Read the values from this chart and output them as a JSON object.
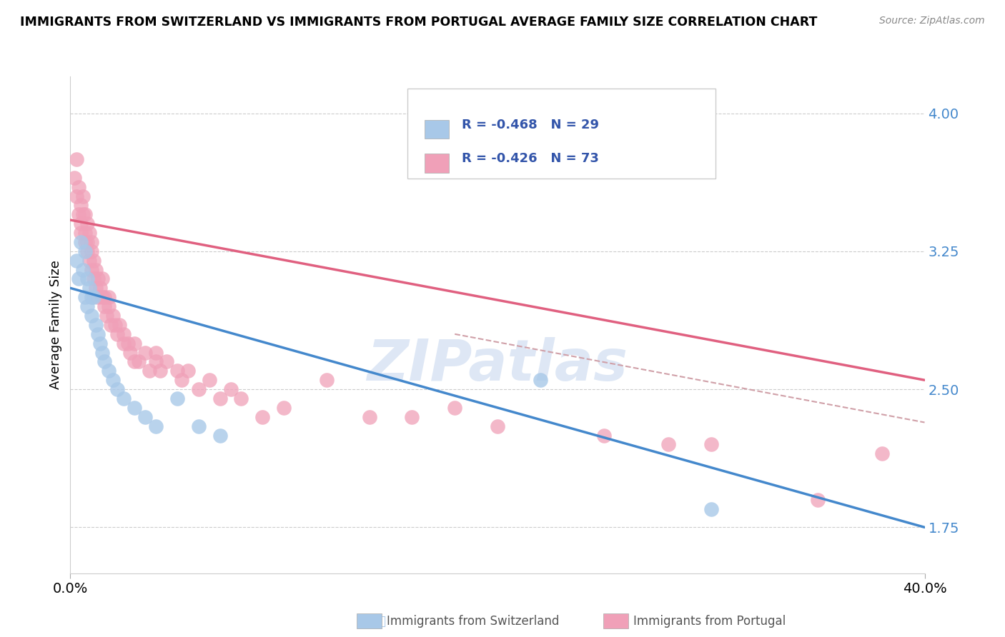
{
  "title": "IMMIGRANTS FROM SWITZERLAND VS IMMIGRANTS FROM PORTUGAL AVERAGE FAMILY SIZE CORRELATION CHART",
  "source": "Source: ZipAtlas.com",
  "ylabel": "Average Family Size",
  "ymin": 1.5,
  "ymax": 4.2,
  "xmin": 0.0,
  "xmax": 0.4,
  "yticks": [
    1.75,
    2.5,
    3.25,
    4.0
  ],
  "legend_r1": "R = -0.468",
  "legend_n1": "N = 29",
  "legend_r2": "R = -0.426",
  "legend_n2": "N = 73",
  "color_swiss": "#a8c8e8",
  "color_port": "#f0a0b8",
  "color_swiss_line": "#4488cc",
  "color_port_line": "#e06080",
  "color_dashed": "#d0a0a8",
  "color_legend_text": "#3355aa",
  "watermark": "ZIPatlas",
  "watermark_color": "#c8d8ef",
  "swiss_line_x0": 0.0,
  "swiss_line_y0": 3.05,
  "swiss_line_x1": 0.4,
  "swiss_line_y1": 1.75,
  "port_line_x0": 0.0,
  "port_line_y0": 3.42,
  "port_line_x1": 0.4,
  "port_line_y1": 2.55,
  "dash_line_x0": 0.18,
  "dash_line_y0": 2.8,
  "dash_line_x1": 0.4,
  "dash_line_y1": 2.32,
  "scatter_swiss_x": [
    0.003,
    0.004,
    0.005,
    0.006,
    0.007,
    0.007,
    0.008,
    0.008,
    0.009,
    0.01,
    0.01,
    0.011,
    0.012,
    0.013,
    0.014,
    0.015,
    0.016,
    0.018,
    0.02,
    0.022,
    0.025,
    0.03,
    0.035,
    0.04,
    0.05,
    0.06,
    0.07,
    0.22,
    0.3
  ],
  "scatter_swiss_y": [
    3.2,
    3.1,
    3.3,
    3.15,
    3.25,
    3.0,
    3.1,
    2.95,
    3.05,
    3.0,
    2.9,
    3.0,
    2.85,
    2.8,
    2.75,
    2.7,
    2.65,
    2.6,
    2.55,
    2.5,
    2.45,
    2.4,
    2.35,
    2.3,
    2.45,
    2.3,
    2.25,
    2.55,
    1.85
  ],
  "scatter_port_x": [
    0.002,
    0.003,
    0.003,
    0.004,
    0.004,
    0.005,
    0.005,
    0.005,
    0.006,
    0.006,
    0.007,
    0.007,
    0.007,
    0.008,
    0.008,
    0.008,
    0.009,
    0.009,
    0.01,
    0.01,
    0.01,
    0.011,
    0.011,
    0.012,
    0.012,
    0.013,
    0.013,
    0.014,
    0.015,
    0.015,
    0.016,
    0.016,
    0.017,
    0.018,
    0.018,
    0.019,
    0.02,
    0.021,
    0.022,
    0.023,
    0.025,
    0.025,
    0.027,
    0.028,
    0.03,
    0.03,
    0.032,
    0.035,
    0.037,
    0.04,
    0.04,
    0.042,
    0.045,
    0.05,
    0.052,
    0.055,
    0.06,
    0.065,
    0.07,
    0.075,
    0.08,
    0.09,
    0.1,
    0.12,
    0.14,
    0.16,
    0.18,
    0.2,
    0.25,
    0.28,
    0.3,
    0.35,
    0.38
  ],
  "scatter_port_y": [
    3.65,
    3.75,
    3.55,
    3.6,
    3.45,
    3.5,
    3.4,
    3.35,
    3.55,
    3.45,
    3.35,
    3.45,
    3.3,
    3.4,
    3.3,
    3.25,
    3.35,
    3.2,
    3.3,
    3.25,
    3.15,
    3.2,
    3.1,
    3.15,
    3.05,
    3.1,
    3.0,
    3.05,
    3.1,
    3.0,
    2.95,
    3.0,
    2.9,
    2.95,
    3.0,
    2.85,
    2.9,
    2.85,
    2.8,
    2.85,
    2.75,
    2.8,
    2.75,
    2.7,
    2.65,
    2.75,
    2.65,
    2.7,
    2.6,
    2.65,
    2.7,
    2.6,
    2.65,
    2.6,
    2.55,
    2.6,
    2.5,
    2.55,
    2.45,
    2.5,
    2.45,
    2.35,
    2.4,
    2.55,
    2.35,
    2.35,
    2.4,
    2.3,
    2.25,
    2.2,
    2.2,
    1.9,
    2.15
  ]
}
